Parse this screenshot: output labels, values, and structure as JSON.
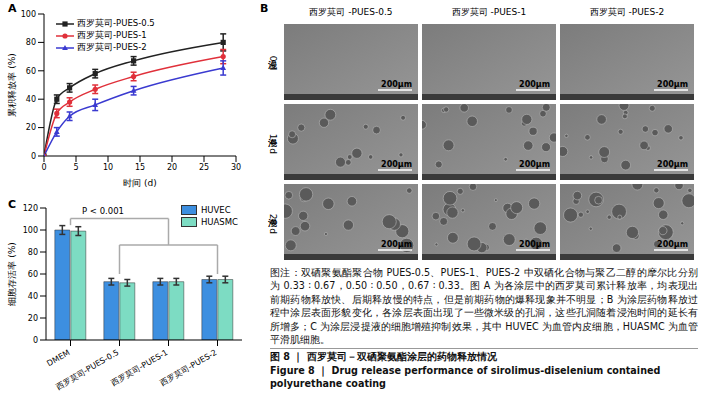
{
  "chart_data": [
    {
      "title": "A",
      "type": "line",
      "y_label": "累积释放率 (%)",
      "x_label": "时间 (d)",
      "xlim": [
        0,
        30
      ],
      "xticks": [
        0,
        5,
        10,
        15,
        20,
        25,
        30
      ],
      "ylim": [
        0,
        100
      ],
      "yticks": [
        0,
        20,
        40,
        60,
        80,
        100
      ],
      "legend": "upper left",
      "x": [
        0,
        2,
        4,
        8,
        14,
        28
      ],
      "series": [
        {
          "name": "西罗莫司-PUES-0.5",
          "color": "#222222",
          "marker": "square",
          "values": [
            0,
            40,
            48,
            58,
            67,
            80
          ],
          "errors": [
            0,
            3,
            3,
            3,
            3,
            6
          ]
        },
        {
          "name": "西罗莫司-PUES-1",
          "color": "#e0303a",
          "marker": "circle",
          "values": [
            0,
            30,
            38,
            47,
            56,
            70
          ],
          "errors": [
            0,
            3,
            3,
            3,
            3,
            5
          ]
        },
        {
          "name": "西罗莫司-PUES-2",
          "color": "#3a3ad0",
          "marker": "triangle",
          "values": [
            0,
            17,
            28,
            36,
            46,
            62
          ],
          "errors": [
            0,
            3,
            3,
            4,
            3,
            5
          ]
        }
      ]
    },
    {
      "title": "C",
      "type": "bar",
      "y_label": "细胞存活率 (%)",
      "categories": [
        "DMEM",
        "西罗莫司-PUES-0.5",
        "西罗莫司-PUES-1",
        "西罗莫司-PUES-2"
      ],
      "ylim": [
        0,
        120
      ],
      "yticks": [
        0,
        20,
        40,
        60,
        80,
        100,
        120
      ],
      "legend": "upper right",
      "annotation": "P < 0.001",
      "series": [
        {
          "name": "HUVEC",
          "color": "#3d8fe0",
          "values": [
            100,
            53,
            53,
            55
          ],
          "errors": [
            4,
            3,
            3,
            3
          ]
        },
        {
          "name": "HUASMC",
          "color": "#7ddcc3",
          "values": [
            99,
            52,
            53,
            55
          ],
          "errors": [
            4,
            3,
            3,
            3
          ]
        }
      ]
    }
  ],
  "panel_b": {
    "title": "B",
    "columns": [
      "西罗莫司 -PUES-0.5",
      "西罗莫司 -PUES-1",
      "西罗莫司 -PUES-2"
    ],
    "rows": [
      "浸泡 0 d",
      "浸泡 14 d",
      "浸泡 28 d"
    ],
    "scale_bar": "200μm"
  },
  "caption": {
    "text": "图注：双硒聚氨酯聚合物 PUES-0.5、PUES-1、PUES-2 中双硒化合物与聚乙二醇的摩尔比分别为 0.33 ∶ 0.67，0.50 ∶ 0.50，0.67 ∶ 0.33。图 A 为各涂层中的西罗莫司累计释放率，均表现出前期药物释放快、后期释放慢的特点，但是前期药物的爆释现象并不明显；B 为涂层药物释放过程中涂层表面形貌变化，各涂层表面出现了一些微米级的孔洞，这些孔洞随着浸泡时间的延长有所增多；C 为涂层浸提液的细胞增殖抑制效果，其中 HUVEC 为血管内皮细胞，HUASMC 为血管平滑肌细胞。",
    "title_cn": "图 8 ｜ 西罗莫司－双硒聚氨酯涂层的药物释放情况",
    "title_en": "Figure 8 ｜ Drug release performance of sirolimus-diselenium contained polyurethane coating"
  }
}
